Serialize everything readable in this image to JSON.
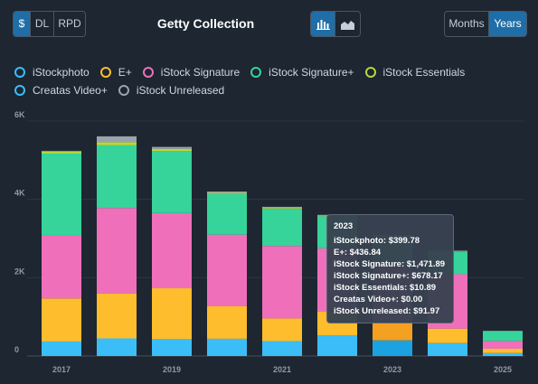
{
  "header": {
    "title": "Getty Collection",
    "metric_buttons": [
      {
        "label": "$",
        "active": true
      },
      {
        "label": "DL",
        "active": false
      },
      {
        "label": "RPD",
        "active": false
      }
    ],
    "chart_type_buttons": [
      {
        "icon": "bar-chart-icon",
        "active": true
      },
      {
        "icon": "area-chart-icon",
        "active": false
      }
    ],
    "period_buttons": [
      {
        "label": "Months",
        "active": false
      },
      {
        "label": "Years",
        "active": true
      }
    ]
  },
  "colors": {
    "iStockphoto": "#3bbdf7",
    "E+": "#fdbd2c",
    "iStock Signature": "#f06fba",
    "iStock Signature+": "#36d39a",
    "iStock Essentials": "#b4d93c",
    "Creatas Video+": "#3bbdf7",
    "iStock Unreleased": "#9aa3ae",
    "highlight_iStockphoto": "#1aa3e0",
    "highlight_E+": "#f4a021"
  },
  "tooltip": {
    "year": "2023",
    "lines": [
      "iStockphoto: $399.78",
      "E+: $436.84",
      "iStock Signature: $1,471.89",
      "iStock Signature+: $678.17",
      "iStock Essentials: $10.89",
      "Creatas Video+: $0.00",
      "iStock Unreleased: $91.97"
    ]
  },
  "chart_data": {
    "type": "bar",
    "stacked": true,
    "categories": [
      "2017",
      "2018",
      "2019",
      "2020",
      "2021",
      "2022",
      "2023",
      "2024",
      "2025"
    ],
    "x_tick_labels": [
      "2017",
      "",
      "2019",
      "",
      "2021",
      "",
      "2023",
      "",
      "2025"
    ],
    "ylim": [
      0,
      6000
    ],
    "y_ticks": [
      0,
      2000,
      4000,
      6000
    ],
    "y_tick_labels": [
      "0",
      "2K",
      "4K",
      "6K"
    ],
    "grid": true,
    "legend_position": "top-left",
    "highlighted_category": "2023",
    "series": [
      {
        "name": "iStockphoto",
        "values": [
          370,
          450,
          430,
          440,
          380,
          530,
          400,
          330,
          75
        ]
      },
      {
        "name": "E+",
        "values": [
          1100,
          1150,
          1300,
          830,
          580,
          600,
          437,
          370,
          110
        ]
      },
      {
        "name": "iStock Signature",
        "values": [
          1600,
          2180,
          1920,
          1830,
          1850,
          1620,
          1472,
          1390,
          200
        ]
      },
      {
        "name": "iStock Signature+",
        "values": [
          2100,
          1600,
          1580,
          1040,
          950,
          820,
          678,
          570,
          250
        ]
      },
      {
        "name": "iStock Essentials",
        "values": [
          50,
          80,
          60,
          30,
          20,
          15,
          11,
          10,
          3
        ]
      },
      {
        "name": "Creatas Video+",
        "values": [
          0,
          0,
          0,
          0,
          0,
          0,
          0,
          0,
          0
        ]
      },
      {
        "name": "iStock Unreleased",
        "values": [
          20,
          150,
          50,
          30,
          30,
          20,
          92,
          20,
          5
        ]
      }
    ]
  }
}
